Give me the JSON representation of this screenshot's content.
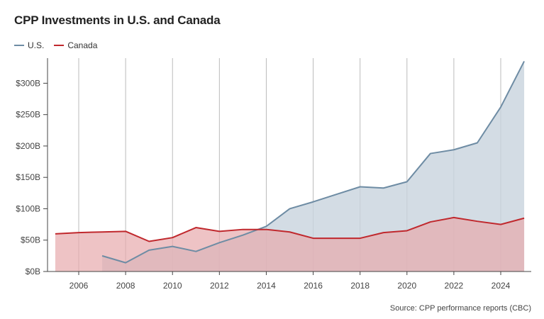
{
  "title": "CPP Investments in U.S. and Canada",
  "source": "Source: CPP performance reports (CBC)",
  "legend": [
    {
      "label": "U.S.",
      "color": "#6e8ca4"
    },
    {
      "label": "Canada",
      "color": "#c0282d"
    }
  ],
  "colors": {
    "us_line": "#6e8ca4",
    "us_fill": "#c8d3dd",
    "ca_line": "#c0282d",
    "ca_fill": "#e7a9ad",
    "grid": "#bbbbbb",
    "axis": "#444444"
  },
  "chart_data": {
    "type": "area",
    "title": "CPP Investments in U.S. and Canada",
    "xlabel": "",
    "ylabel": "",
    "xlim": [
      2005,
      2025
    ],
    "ylim": [
      0,
      340
    ],
    "x_ticks": [
      2006,
      2008,
      2010,
      2012,
      2014,
      2016,
      2018,
      2020,
      2022,
      2024
    ],
    "x_tick_labels": [
      "2006",
      "2008",
      "2010",
      "2012",
      "2014",
      "2016",
      "2018",
      "2020",
      "2022",
      "2024"
    ],
    "y_ticks": [
      0,
      50,
      100,
      150,
      200,
      250,
      300
    ],
    "y_tick_labels": [
      "$0B",
      "$50B",
      "$100B",
      "$150B",
      "$200B",
      "$250B",
      "$300B"
    ],
    "grid": "vertical",
    "legend_position": "top-left",
    "series": [
      {
        "name": "U.S.",
        "x": [
          2007,
          2008,
          2009,
          2010,
          2011,
          2012,
          2013,
          2014,
          2015,
          2016,
          2017,
          2018,
          2019,
          2020,
          2021,
          2022,
          2023,
          2024,
          2025
        ],
        "values": [
          25,
          14,
          34,
          40,
          32,
          46,
          58,
          72,
          100,
          111,
          123,
          135,
          133,
          143,
          188,
          194,
          205,
          262,
          335
        ]
      },
      {
        "name": "Canada",
        "x": [
          2005,
          2006,
          2007,
          2008,
          2009,
          2010,
          2011,
          2012,
          2013,
          2014,
          2015,
          2016,
          2017,
          2018,
          2019,
          2020,
          2021,
          2022,
          2023,
          2024,
          2025
        ],
        "values": [
          60,
          62,
          63,
          64,
          48,
          54,
          70,
          64,
          67,
          67,
          63,
          53,
          53,
          53,
          62,
          65,
          79,
          86,
          80,
          75,
          85
        ]
      }
    ]
  }
}
